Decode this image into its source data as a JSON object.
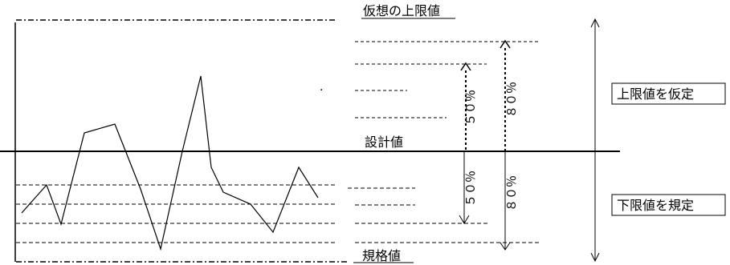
{
  "labels": {
    "hypothetical_upper_limit": "仮想の上限値",
    "design_value": "設計値",
    "spec_value": "規格値",
    "pct_50_upper": "５０％",
    "pct_80_upper": "８０％",
    "pct_50_lower": "５０％",
    "pct_80_lower": "８０％",
    "assume_upper_box": "上限値を仮定",
    "define_lower_box": "下限値を規定",
    "dot_marker": "·"
  }
}
